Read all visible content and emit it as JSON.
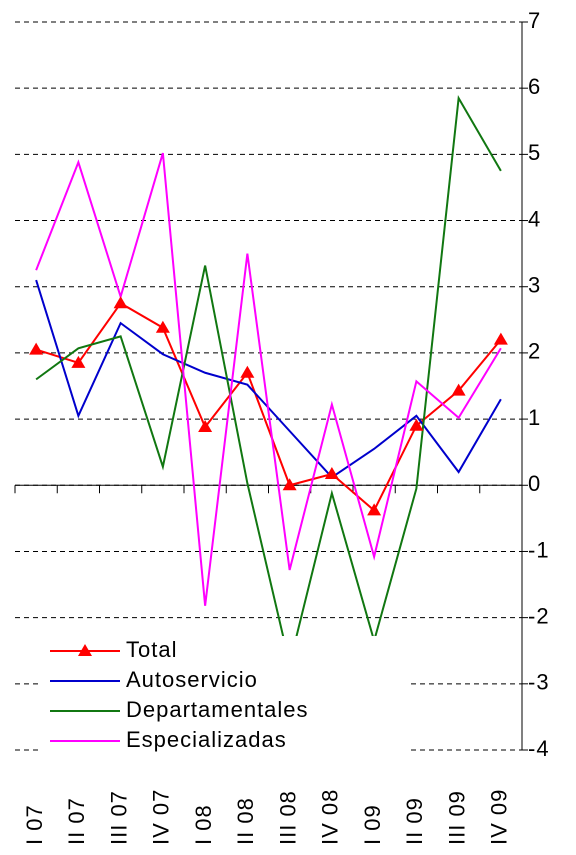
{
  "chart_data": {
    "type": "line",
    "categories": [
      "I 07",
      "II 07",
      "III 07",
      "IV 07",
      "I 08",
      "II 08",
      "III 08",
      "IV 08",
      "I 09",
      "II 09",
      "III 09",
      "IV 09"
    ],
    "series": [
      {
        "name": "Total",
        "color": "#ff0000",
        "marker": "triangle",
        "values": [
          2.05,
          1.85,
          2.75,
          2.38,
          0.88,
          1.7,
          0.0,
          0.17,
          -0.38,
          0.9,
          1.43,
          2.2
        ]
      },
      {
        "name": "Autoservicio",
        "color": "#0000cc",
        "values": [
          3.1,
          1.05,
          2.45,
          1.98,
          1.7,
          1.52,
          0.82,
          0.12,
          0.55,
          1.05,
          0.2,
          1.3
        ]
      },
      {
        "name": "Departamentales",
        "color": "#117711",
        "values": [
          1.6,
          2.07,
          2.25,
          0.28,
          3.32,
          0.03,
          -2.7,
          -0.12,
          -2.35,
          -0.05,
          5.85,
          4.75
        ]
      },
      {
        "name": "Especializadas",
        "color": "#ff00ff",
        "values": [
          3.25,
          4.88,
          2.85,
          5.02,
          -1.82,
          3.5,
          -1.28,
          1.22,
          -1.08,
          1.57,
          1.02,
          2.07
        ]
      }
    ],
    "ylim": [
      -4,
      7
    ],
    "yticks": [
      -4,
      -3,
      -2,
      -1,
      0,
      1,
      2,
      3,
      4,
      5,
      6,
      7
    ],
    "grid": true
  }
}
